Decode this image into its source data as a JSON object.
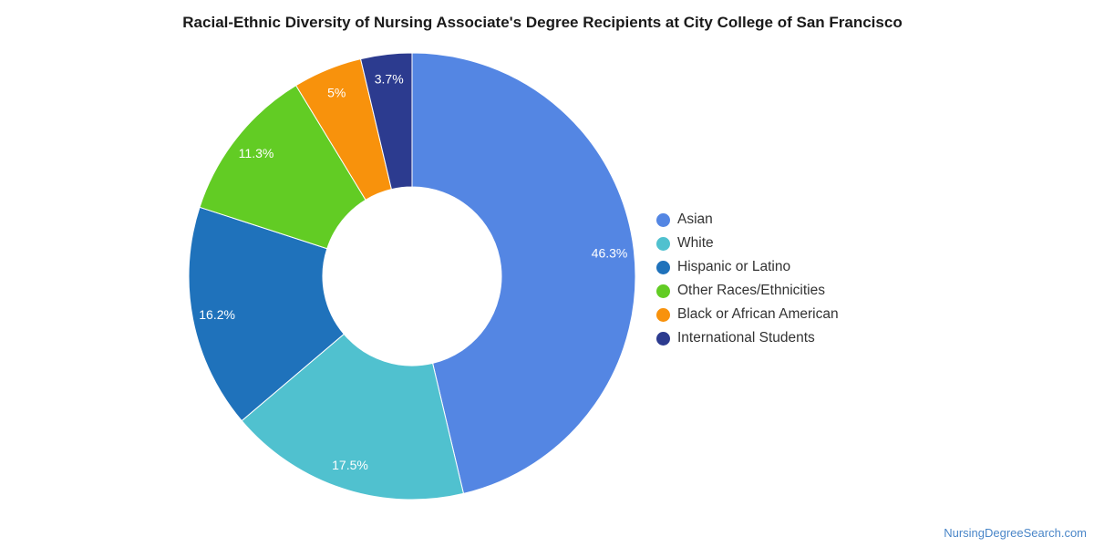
{
  "chart_data": {
    "type": "pie",
    "title": "Racial-Ethnic Diversity of Nursing Associate's Degree Recipients at City College of San Francisco",
    "categories": [
      "Asian",
      "White",
      "Hispanic or Latino",
      "Other Races/Ethnicities",
      "Black or African American",
      "International Students"
    ],
    "values": [
      46.3,
      17.5,
      16.2,
      11.3,
      5.0,
      3.7
    ],
    "value_labels": [
      "46.3%",
      "17.5%",
      "16.2%",
      "11.3%",
      "5%",
      "3.7%"
    ],
    "colors": [
      "#5486e3",
      "#50c1cf",
      "#1f72bb",
      "#62cc24",
      "#f8920c",
      "#2c3b8f"
    ],
    "legend_position": "right",
    "donut": true
  },
  "footer": {
    "text": "NursingDegreeSearch.com"
  }
}
